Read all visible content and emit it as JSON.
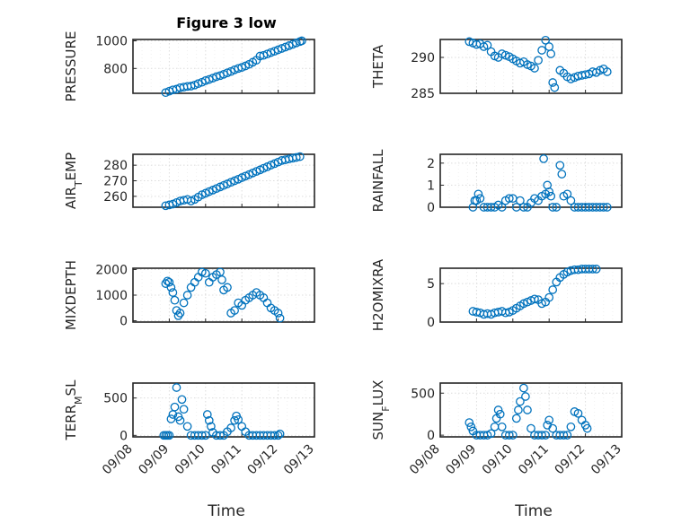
{
  "figure": {
    "title": "Figure 3 low",
    "xlabel": "Time"
  },
  "colors": {
    "marker": "#0072BD",
    "axis": "#262626",
    "grid": "#dcdcdc"
  },
  "x_axis": {
    "start": "09/08",
    "end": "09/13",
    "ticks": [
      "09/08",
      "09/09",
      "09/10",
      "09/11",
      "09/12",
      "09/13"
    ]
  },
  "chart_data": [
    {
      "type": "scatter",
      "id": "pressure",
      "ylabel": "PRESSURE",
      "ylim": [
        620,
        1010
      ],
      "yticks": [
        800,
        1000
      ],
      "yticklabels": [
        "800",
        "1000"
      ],
      "points": [
        [
          0.9,
          625
        ],
        [
          1.0,
          635
        ],
        [
          1.1,
          645
        ],
        [
          1.2,
          650
        ],
        [
          1.3,
          660
        ],
        [
          1.4,
          665
        ],
        [
          1.5,
          670
        ],
        [
          1.6,
          672
        ],
        [
          1.7,
          680
        ],
        [
          1.8,
          690
        ],
        [
          1.9,
          700
        ],
        [
          2.0,
          712
        ],
        [
          2.1,
          720
        ],
        [
          2.2,
          730
        ],
        [
          2.3,
          740
        ],
        [
          2.4,
          748
        ],
        [
          2.5,
          758
        ],
        [
          2.6,
          768
        ],
        [
          2.7,
          778
        ],
        [
          2.8,
          790
        ],
        [
          2.9,
          800
        ],
        [
          3.0,
          808
        ],
        [
          3.1,
          818
        ],
        [
          3.2,
          830
        ],
        [
          3.3,
          845
        ],
        [
          3.4,
          860
        ],
        [
          3.5,
          890
        ],
        [
          3.6,
          895
        ],
        [
          3.7,
          905
        ],
        [
          3.8,
          915
        ],
        [
          3.9,
          925
        ],
        [
          4.0,
          935
        ],
        [
          4.1,
          945
        ],
        [
          4.2,
          955
        ],
        [
          4.3,
          965
        ],
        [
          4.4,
          975
        ],
        [
          4.5,
          985
        ],
        [
          4.6,
          995
        ],
        [
          4.65,
          1000
        ]
      ]
    },
    {
      "type": "scatter",
      "id": "theta",
      "ylabel": "THETA",
      "ylim": [
        285,
        292.5
      ],
      "yticks": [
        285,
        290
      ],
      "yticklabels": [
        "285",
        "290"
      ],
      "points": [
        [
          0.8,
          292.2
        ],
        [
          0.9,
          292.0
        ],
        [
          1.0,
          291.8
        ],
        [
          1.1,
          291.9
        ],
        [
          1.2,
          291.5
        ],
        [
          1.3,
          291.7
        ],
        [
          1.4,
          290.8
        ],
        [
          1.5,
          290.2
        ],
        [
          1.6,
          290.0
        ],
        [
          1.7,
          290.5
        ],
        [
          1.8,
          290.3
        ],
        [
          1.9,
          290.1
        ],
        [
          2.0,
          289.8
        ],
        [
          2.1,
          289.5
        ],
        [
          2.2,
          289.2
        ],
        [
          2.3,
          289.4
        ],
        [
          2.4,
          289.0
        ],
        [
          2.5,
          288.8
        ],
        [
          2.6,
          288.5
        ],
        [
          2.7,
          289.6
        ],
        [
          2.8,
          291.0
        ],
        [
          2.9,
          292.4
        ],
        [
          3.0,
          291.5
        ],
        [
          3.05,
          290.5
        ],
        [
          3.1,
          286.5
        ],
        [
          3.15,
          285.8
        ],
        [
          3.3,
          288.2
        ],
        [
          3.4,
          287.8
        ],
        [
          3.5,
          287.3
        ],
        [
          3.6,
          287.0
        ],
        [
          3.7,
          287.2
        ],
        [
          3.8,
          287.4
        ],
        [
          3.9,
          287.5
        ],
        [
          4.0,
          287.6
        ],
        [
          4.1,
          287.7
        ],
        [
          4.2,
          288.0
        ],
        [
          4.3,
          287.9
        ],
        [
          4.4,
          288.2
        ],
        [
          4.5,
          288.4
        ],
        [
          4.6,
          288.0
        ]
      ]
    },
    {
      "type": "scatter",
      "id": "air_temp",
      "ylabel": "AIR_TEMP",
      "ylim": [
        253,
        287
      ],
      "yticks": [
        260,
        270,
        280
      ],
      "yticklabels": [
        "260",
        "270",
        "280"
      ],
      "points": [
        [
          0.9,
          254
        ],
        [
          1.0,
          254.5
        ],
        [
          1.1,
          255
        ],
        [
          1.2,
          256
        ],
        [
          1.3,
          257
        ],
        [
          1.4,
          257.5
        ],
        [
          1.5,
          258
        ],
        [
          1.6,
          257
        ],
        [
          1.7,
          258
        ],
        [
          1.8,
          259.5
        ],
        [
          1.9,
          261
        ],
        [
          2.0,
          262
        ],
        [
          2.1,
          263
        ],
        [
          2.2,
          264
        ],
        [
          2.3,
          265
        ],
        [
          2.4,
          266
        ],
        [
          2.5,
          267
        ],
        [
          2.6,
          268
        ],
        [
          2.7,
          269
        ],
        [
          2.8,
          270
        ],
        [
          2.9,
          271
        ],
        [
          3.0,
          272
        ],
        [
          3.1,
          273
        ],
        [
          3.2,
          274
        ],
        [
          3.3,
          275
        ],
        [
          3.4,
          276
        ],
        [
          3.5,
          277
        ],
        [
          3.6,
          278
        ],
        [
          3.7,
          279
        ],
        [
          3.8,
          280
        ],
        [
          3.9,
          281
        ],
        [
          4.0,
          282
        ],
        [
          4.1,
          283
        ],
        [
          4.2,
          283.5
        ],
        [
          4.3,
          284
        ],
        [
          4.4,
          284.5
        ],
        [
          4.5,
          285
        ],
        [
          4.6,
          285.5
        ]
      ]
    },
    {
      "type": "scatter",
      "id": "rainfall",
      "ylabel": "RAINFALL",
      "ylim": [
        0,
        2.4
      ],
      "yticks": [
        0,
        1,
        2
      ],
      "yticklabels": [
        "0",
        "1",
        "2"
      ],
      "points": [
        [
          0.9,
          0
        ],
        [
          0.95,
          0.3
        ],
        [
          1.0,
          0.3
        ],
        [
          1.05,
          0.6
        ],
        [
          1.1,
          0.4
        ],
        [
          1.2,
          0
        ],
        [
          1.3,
          0
        ],
        [
          1.4,
          0
        ],
        [
          1.5,
          0
        ],
        [
          1.6,
          0.1
        ],
        [
          1.7,
          0
        ],
        [
          1.8,
          0.3
        ],
        [
          1.9,
          0.4
        ],
        [
          2.0,
          0.4
        ],
        [
          2.1,
          0
        ],
        [
          2.2,
          0.3
        ],
        [
          2.3,
          0
        ],
        [
          2.4,
          0
        ],
        [
          2.5,
          0.2
        ],
        [
          2.6,
          0.4
        ],
        [
          2.7,
          0.3
        ],
        [
          2.8,
          0.5
        ],
        [
          2.85,
          2.2
        ],
        [
          2.9,
          0.6
        ],
        [
          2.95,
          1.0
        ],
        [
          3.0,
          0.7
        ],
        [
          3.05,
          0.5
        ],
        [
          3.1,
          0
        ],
        [
          3.2,
          0
        ],
        [
          3.3,
          1.9
        ],
        [
          3.35,
          1.5
        ],
        [
          3.4,
          0.5
        ],
        [
          3.5,
          0.6
        ],
        [
          3.6,
          0.3
        ],
        [
          3.7,
          0
        ],
        [
          3.8,
          0
        ],
        [
          3.9,
          0
        ],
        [
          4.0,
          0
        ],
        [
          4.1,
          0
        ],
        [
          4.2,
          0
        ],
        [
          4.3,
          0
        ],
        [
          4.4,
          0
        ],
        [
          4.5,
          0
        ],
        [
          4.6,
          0
        ]
      ]
    },
    {
      "type": "scatter",
      "id": "mixdepth",
      "ylabel": "MIXDEPTH",
      "ylim": [
        -50,
        2050
      ],
      "yticks": [
        0,
        1000,
        2000
      ],
      "yticklabels": [
        "0",
        "1000",
        "2000"
      ],
      "points": [
        [
          0.9,
          1450
        ],
        [
          0.95,
          1550
        ],
        [
          1.0,
          1500
        ],
        [
          1.05,
          1300
        ],
        [
          1.1,
          1100
        ],
        [
          1.15,
          800
        ],
        [
          1.2,
          400
        ],
        [
          1.25,
          200
        ],
        [
          1.3,
          300
        ],
        [
          1.4,
          700
        ],
        [
          1.5,
          1000
        ],
        [
          1.6,
          1300
        ],
        [
          1.7,
          1500
        ],
        [
          1.8,
          1700
        ],
        [
          1.9,
          1900
        ],
        [
          2.0,
          1850
        ],
        [
          2.1,
          1500
        ],
        [
          2.2,
          1700
        ],
        [
          2.3,
          1800
        ],
        [
          2.4,
          1900
        ],
        [
          2.45,
          1600
        ],
        [
          2.5,
          1200
        ],
        [
          2.6,
          1300
        ],
        [
          2.7,
          300
        ],
        [
          2.8,
          400
        ],
        [
          2.9,
          700
        ],
        [
          3.0,
          600
        ],
        [
          3.1,
          800
        ],
        [
          3.2,
          900
        ],
        [
          3.3,
          1000
        ],
        [
          3.4,
          1100
        ],
        [
          3.5,
          1000
        ],
        [
          3.6,
          900
        ],
        [
          3.7,
          700
        ],
        [
          3.8,
          500
        ],
        [
          3.9,
          400
        ],
        [
          4.0,
          300
        ],
        [
          4.05,
          100
        ]
      ]
    },
    {
      "type": "scatter",
      "id": "h2omixra",
      "ylabel": "H2OMIXRA",
      "ylim": [
        0,
        7
      ],
      "yticks": [
        0,
        5
      ],
      "yticklabels": [
        "0",
        "5"
      ],
      "points": [
        [
          0.9,
          1.4
        ],
        [
          1.0,
          1.3
        ],
        [
          1.1,
          1.2
        ],
        [
          1.2,
          1.0
        ],
        [
          1.3,
          1.1
        ],
        [
          1.4,
          1.0
        ],
        [
          1.5,
          1.2
        ],
        [
          1.6,
          1.3
        ],
        [
          1.7,
          1.4
        ],
        [
          1.8,
          1.2
        ],
        [
          1.9,
          1.3
        ],
        [
          2.0,
          1.5
        ],
        [
          2.1,
          1.8
        ],
        [
          2.2,
          2.1
        ],
        [
          2.3,
          2.4
        ],
        [
          2.4,
          2.6
        ],
        [
          2.5,
          2.8
        ],
        [
          2.6,
          3.0
        ],
        [
          2.7,
          2.9
        ],
        [
          2.8,
          2.4
        ],
        [
          2.9,
          2.6
        ],
        [
          3.0,
          3.2
        ],
        [
          3.1,
          4.2
        ],
        [
          3.2,
          5.2
        ],
        [
          3.3,
          5.8
        ],
        [
          3.4,
          6.2
        ],
        [
          3.5,
          6.5
        ],
        [
          3.6,
          6.7
        ],
        [
          3.7,
          6.8
        ],
        [
          3.8,
          6.8
        ],
        [
          3.9,
          6.9
        ],
        [
          4.0,
          6.9
        ],
        [
          4.1,
          6.9
        ],
        [
          4.2,
          6.9
        ],
        [
          4.3,
          6.9
        ]
      ]
    },
    {
      "type": "scatter",
      "id": "terr_msl",
      "ylabel": "TERR_MSL",
      "ylim": [
        -20,
        700
      ],
      "yticks": [
        0,
        500
      ],
      "yticklabels": [
        "0",
        "500"
      ],
      "points": [
        [
          0.85,
          0
        ],
        [
          0.9,
          0
        ],
        [
          0.95,
          0
        ],
        [
          1.0,
          0
        ],
        [
          1.05,
          220
        ],
        [
          1.1,
          280
        ],
        [
          1.15,
          380
        ],
        [
          1.2,
          640
        ],
        [
          1.25,
          250
        ],
        [
          1.3,
          200
        ],
        [
          1.35,
          480
        ],
        [
          1.4,
          350
        ],
        [
          1.5,
          120
        ],
        [
          1.6,
          0
        ],
        [
          1.7,
          0
        ],
        [
          1.8,
          0
        ],
        [
          1.9,
          0
        ],
        [
          2.0,
          0
        ],
        [
          2.05,
          280
        ],
        [
          2.1,
          200
        ],
        [
          2.15,
          120
        ],
        [
          2.2,
          40
        ],
        [
          2.3,
          0
        ],
        [
          2.4,
          0
        ],
        [
          2.5,
          0
        ],
        [
          2.6,
          50
        ],
        [
          2.7,
          100
        ],
        [
          2.8,
          200
        ],
        [
          2.85,
          260
        ],
        [
          2.9,
          210
        ],
        [
          3.0,
          120
        ],
        [
          3.1,
          50
        ],
        [
          3.2,
          0
        ],
        [
          3.3,
          0
        ],
        [
          3.4,
          0
        ],
        [
          3.5,
          0
        ],
        [
          3.6,
          0
        ],
        [
          3.7,
          0
        ],
        [
          3.8,
          0
        ],
        [
          3.9,
          0
        ],
        [
          4.0,
          0
        ],
        [
          4.05,
          20
        ]
      ]
    },
    {
      "type": "scatter",
      "id": "sun_flux",
      "ylabel": "SUN_FLUX",
      "ylim": [
        -20,
        620
      ],
      "yticks": [
        0,
        500
      ],
      "yticklabels": [
        "0",
        "500"
      ],
      "points": [
        [
          0.8,
          150
        ],
        [
          0.85,
          100
        ],
        [
          0.9,
          50
        ],
        [
          1.0,
          0
        ],
        [
          1.1,
          0
        ],
        [
          1.2,
          0
        ],
        [
          1.3,
          0
        ],
        [
          1.4,
          20
        ],
        [
          1.5,
          100
        ],
        [
          1.55,
          200
        ],
        [
          1.6,
          300
        ],
        [
          1.65,
          250
        ],
        [
          1.7,
          100
        ],
        [
          1.8,
          0
        ],
        [
          1.9,
          0
        ],
        [
          2.0,
          0
        ],
        [
          2.1,
          200
        ],
        [
          2.15,
          300
        ],
        [
          2.2,
          400
        ],
        [
          2.3,
          560
        ],
        [
          2.35,
          460
        ],
        [
          2.4,
          300
        ],
        [
          2.5,
          80
        ],
        [
          2.6,
          0
        ],
        [
          2.7,
          0
        ],
        [
          2.8,
          0
        ],
        [
          2.9,
          0
        ],
        [
          2.95,
          120
        ],
        [
          3.0,
          180
        ],
        [
          3.1,
          80
        ],
        [
          3.2,
          0
        ],
        [
          3.3,
          0
        ],
        [
          3.4,
          0
        ],
        [
          3.5,
          0
        ],
        [
          3.6,
          100
        ],
        [
          3.7,
          280
        ],
        [
          3.8,
          260
        ],
        [
          3.9,
          180
        ],
        [
          4.0,
          120
        ],
        [
          4.05,
          80
        ]
      ]
    }
  ]
}
